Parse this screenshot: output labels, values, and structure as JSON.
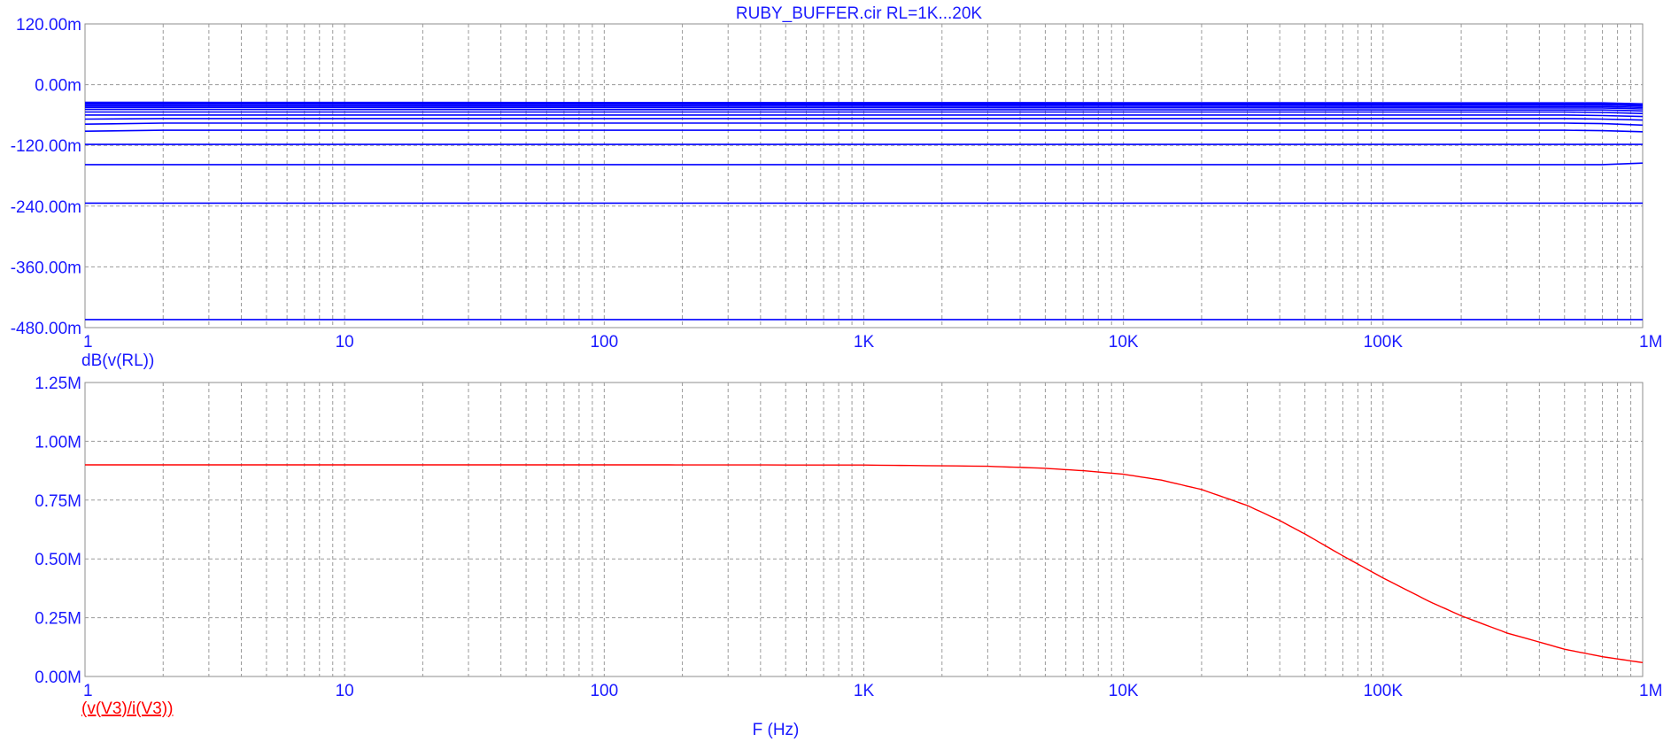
{
  "chart_title": "RUBY_BUFFER.cir RL=1K...20K",
  "x_axis_label": "F (Hz)",
  "colors": {
    "top_trace": "#0000ff",
    "bottom_trace": "#ff0000",
    "text": "#1a1aff",
    "grid": "#9a9a9a"
  },
  "chart_data": [
    {
      "type": "line",
      "title": "RUBY_BUFFER.cir RL=1K...20K",
      "ylabel": "dB(v(RL))",
      "xlabel": "",
      "xscale": "log",
      "xlim": [
        1,
        1000000
      ],
      "ylim": [
        -0.48,
        0.12
      ],
      "x_tick_labels": [
        "1",
        "10",
        "100",
        "1K",
        "10K",
        "100K",
        "1M"
      ],
      "y_tick_labels": [
        "120.00m",
        "0.00m",
        "-120.00m",
        "-240.00m",
        "-360.00m",
        "-480.00m"
      ],
      "y_tick_values": [
        0.12,
        0.0,
        -0.12,
        -0.24,
        -0.36,
        -0.48
      ],
      "grid": true,
      "series": [
        {
          "values": [
            -0.035,
            -0.035,
            -0.036,
            -0.036,
            -0.038
          ]
        },
        {
          "values": [
            -0.037,
            -0.037,
            -0.038,
            -0.038,
            -0.04
          ]
        },
        {
          "values": [
            -0.039,
            -0.039,
            -0.04,
            -0.04,
            -0.042
          ]
        },
        {
          "values": [
            -0.042,
            -0.042,
            -0.043,
            -0.043,
            -0.045
          ]
        },
        {
          "values": [
            -0.045,
            -0.045,
            -0.046,
            -0.046,
            -0.048
          ]
        },
        {
          "values": [
            -0.049,
            -0.049,
            -0.05,
            -0.05,
            -0.052
          ]
        },
        {
          "values": [
            -0.054,
            -0.054,
            -0.054,
            -0.055,
            -0.057
          ]
        },
        {
          "values": [
            -0.06,
            -0.06,
            -0.06,
            -0.061,
            -0.063
          ]
        },
        {
          "values": [
            -0.068,
            -0.067,
            -0.067,
            -0.068,
            -0.07
          ]
        },
        {
          "values": [
            -0.078,
            -0.076,
            -0.076,
            -0.077,
            -0.08
          ]
        },
        {
          "values": [
            -0.092,
            -0.09,
            -0.09,
            -0.091,
            -0.093
          ]
        },
        {
          "values": [
            -0.118,
            -0.118,
            -0.118,
            -0.118,
            -0.118
          ]
        },
        {
          "values": [
            -0.158,
            -0.158,
            -0.158,
            -0.158,
            -0.155
          ]
        },
        {
          "values": [
            -0.234,
            -0.234,
            -0.234,
            -0.234,
            -0.234
          ]
        },
        {
          "values": [
            -0.464,
            -0.464,
            -0.464,
            -0.464,
            -0.464
          ]
        }
      ],
      "x_points": [
        1,
        2,
        500000,
        700000,
        1000000
      ]
    },
    {
      "type": "line",
      "ylabel": "(v(V3)/i(V3))",
      "xlabel": "F (Hz)",
      "xscale": "log",
      "xlim": [
        1,
        1000000
      ],
      "ylim": [
        0,
        1250000
      ],
      "x_tick_labels": [
        "1",
        "10",
        "100",
        "1K",
        "10K",
        "100K",
        "1M"
      ],
      "y_tick_labels": [
        "1.25M",
        "1.00M",
        "0.75M",
        "0.50M",
        "0.25M",
        "0.00M"
      ],
      "y_tick_values": [
        1250000,
        1000000,
        750000,
        500000,
        250000,
        0
      ],
      "grid": true,
      "series": [
        {
          "x": [
            1,
            10,
            100,
            1000,
            3000,
            5000,
            7000,
            10000,
            14000,
            20000,
            30000,
            40000,
            50000,
            70000,
            100000,
            150000,
            200000,
            300000,
            500000,
            700000,
            1000000
          ],
          "values": [
            900000,
            900000,
            900000,
            899000,
            894000,
            885000,
            875000,
            860000,
            835000,
            795000,
            727000,
            663000,
            606000,
            513000,
            419000,
            320000,
            258000,
            185000,
            116000,
            84000,
            59000
          ]
        }
      ]
    }
  ]
}
